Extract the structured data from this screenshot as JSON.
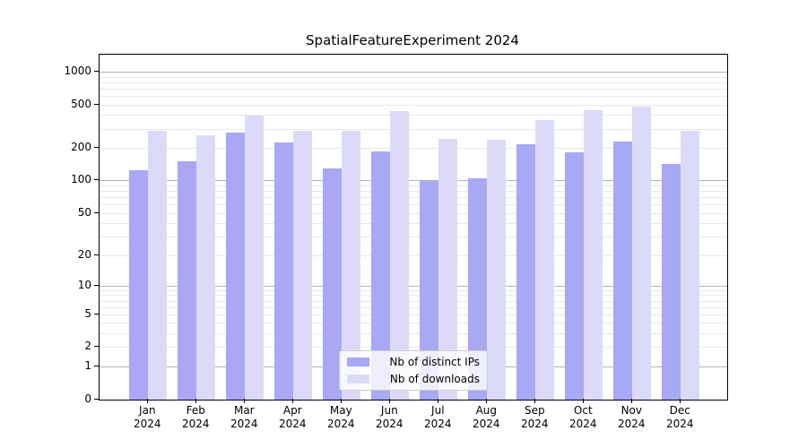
{
  "title": "SpatialFeatureExperiment 2024",
  "legend": {
    "items": [
      {
        "label": "Nb of distinct IPs"
      },
      {
        "label": "Nb of downloads"
      }
    ]
  },
  "chart_data": {
    "type": "bar",
    "title": "SpatialFeatureExperiment 2024",
    "categories": [
      "Jan",
      "Feb",
      "Mar",
      "Apr",
      "May",
      "Jun",
      "Jul",
      "Aug",
      "Sep",
      "Oct",
      "Nov",
      "Dec"
    ],
    "year": "2024",
    "series": [
      {
        "name": "Nb of distinct IPs",
        "color": "#a8a8f5",
        "values": [
          124,
          150,
          274,
          223,
          128,
          185,
          99,
          104,
          217,
          182,
          230,
          141
        ]
      },
      {
        "name": "Nb of downloads",
        "color": "#dbdbf9",
        "values": [
          287,
          262,
          398,
          287,
          287,
          432,
          242,
          237,
          362,
          448,
          481,
          287
        ]
      }
    ],
    "xlabel": "",
    "ylabel": "",
    "y_scale": "log10(1+y)",
    "y_ticks_labeled": [
      0,
      1,
      2,
      5,
      10,
      20,
      50,
      100,
      200,
      500,
      1000
    ],
    "y_major_gridlines": [
      1,
      10,
      100,
      1000
    ],
    "y_minor_gridlines": [
      2,
      3,
      4,
      5,
      6,
      7,
      8,
      9,
      20,
      30,
      40,
      50,
      60,
      70,
      80,
      90,
      200,
      300,
      400,
      500,
      600,
      700,
      800,
      900
    ],
    "ylim": [
      0,
      1450
    ],
    "grid": true,
    "legend_position": "lower center"
  },
  "colors": {
    "bar_dark": "#a8a8f5",
    "bar_light": "#dbdbf9",
    "grid_major": "#b3b3b3",
    "grid_minor": "#e8e8e8",
    "axis": "#000000",
    "legend_border": "#cccccc",
    "legend_bg": "rgba(255,255,255,0.8)",
    "text": "#000000"
  }
}
